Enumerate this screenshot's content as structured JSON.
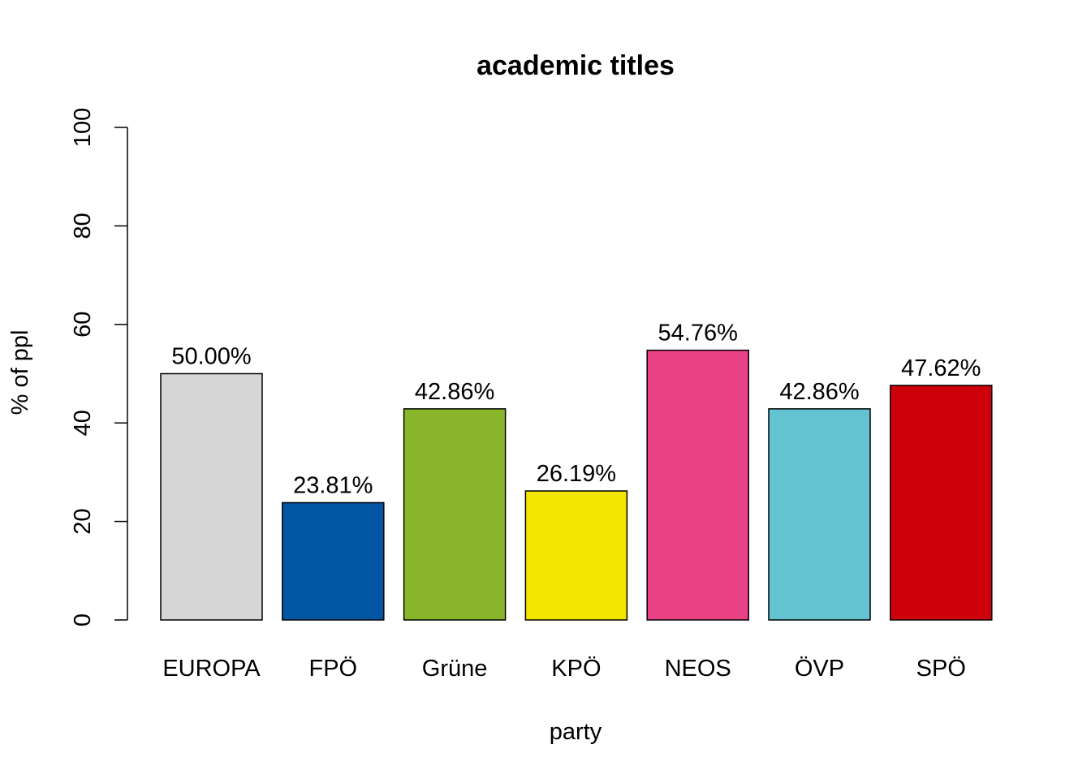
{
  "chart_data": {
    "type": "bar",
    "title": "academic titles",
    "xlabel": "party",
    "ylabel": "% of ppl",
    "ylim": [
      0,
      100
    ],
    "yticks": [
      0,
      20,
      40,
      60,
      80,
      100
    ],
    "categories": [
      "EUROPA",
      "FPÖ",
      "Grüne",
      "KPÖ",
      "NEOS",
      "ÖVP",
      "SPÖ"
    ],
    "values": [
      50.0,
      23.81,
      42.86,
      26.19,
      54.76,
      42.86,
      47.62
    ],
    "value_labels": [
      "50.00%",
      "23.81%",
      "42.86%",
      "26.19%",
      "54.76%",
      "42.86%",
      "47.62%"
    ],
    "colors": [
      "#d6d6d6",
      "#0056a2",
      "#8ab62b",
      "#f2e500",
      "#e84186",
      "#63c3d0",
      "#ce000c"
    ],
    "grid": false,
    "legend": "none"
  }
}
